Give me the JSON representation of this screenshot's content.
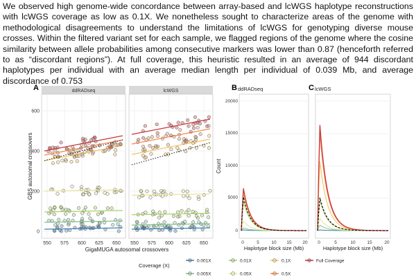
{
  "paragraph": "We observed high genome-wide concordance between array-based and lcWGS haplotype reconstructions with lcWGS coverage as low as 0.1X. We nonetheless sought to characterize areas of the genome with methodological disagreements to understand the limitations of lcWGS for genotyping diverse mouse crosses. Within the filtered variant set for each sample, we flagged regions of the genome where the cosine similarity between allele probabilities among consecutive markers was lower than 0.87 (henceforth referred to as “discordant regions”). At full coverage, this heuristic resulted in an average of 944 discordant haplotypes per individual with an average median length per individual of 0.039 Mb, and average discordance of 0.753",
  "figure": {
    "panel_a": {
      "letter": "A",
      "facets": [
        "ddRADseq",
        "lcWGS"
      ],
      "xlabel": "GigaMUGA autosomal crossovers",
      "ylabel": "GBS autosomal crossovers",
      "xticks": [
        "550",
        "575",
        "600",
        "625",
        "650"
      ],
      "yticks": [
        "0",
        "200",
        "400",
        "600"
      ]
    },
    "panel_b": {
      "letter": "B",
      "title": "ddRADseq",
      "xlabel": "Haplotype block size (Mb)",
      "ylabel": "Count",
      "xticks": [
        "0",
        "5",
        "10",
        "15",
        "20"
      ],
      "yticks": [
        "0",
        "5000",
        "10000",
        "15000",
        "20000"
      ]
    },
    "panel_c": {
      "letter": "C",
      "title": "lcWGS",
      "xlabel": "Haplotype block size (Mb)",
      "xticks": [
        "0",
        "5",
        "10",
        "15",
        "20"
      ]
    },
    "legend": {
      "title": "Coverage (X)",
      "items": [
        {
          "label": "0.001X",
          "color": "#3f7fb0"
        },
        {
          "label": "0.01X",
          "color": "#a9cf68"
        },
        {
          "label": "0.1X",
          "color": "#f5c462"
        },
        {
          "label": "Full Coverage",
          "color": "#c9343a"
        },
        {
          "label": "0.005X",
          "color": "#7fbf8e"
        },
        {
          "label": "0.05X",
          "color": "#e6e69a"
        },
        {
          "label": "0.5X",
          "color": "#f08a4b"
        }
      ]
    }
  }
}
